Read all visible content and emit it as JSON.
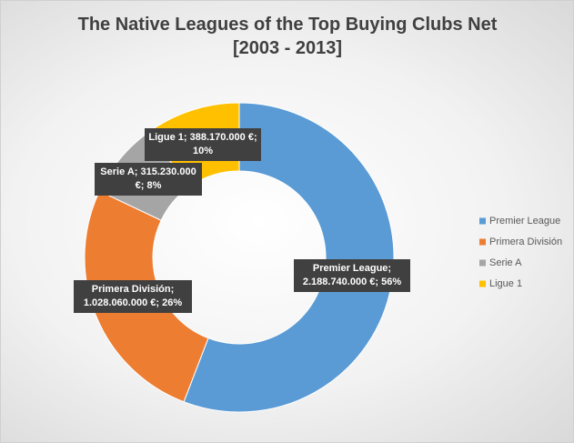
{
  "chart_data": {
    "type": "donut",
    "title": [
      "The Native Leagues of the Top Buying Clubs Net",
      "[2003 - 2013]"
    ],
    "categories": [
      "Premier League",
      "Primera División",
      "Serie A",
      "Ligue 1"
    ],
    "values": [
      2188740000,
      1028060000,
      315230000,
      388170000
    ],
    "value_labels": [
      "Premier League; 2.188.740.000 €; 56%",
      "Primera División; 1.028.060.000 €; 26%",
      "Serie A; 315.230.000 €; 8%",
      "Ligue 1; 388.170.000 €; 10%"
    ],
    "colors": [
      "#5b9bd5",
      "#ed7d31",
      "#a5a5a5",
      "#ffc000"
    ],
    "legend": "right"
  }
}
